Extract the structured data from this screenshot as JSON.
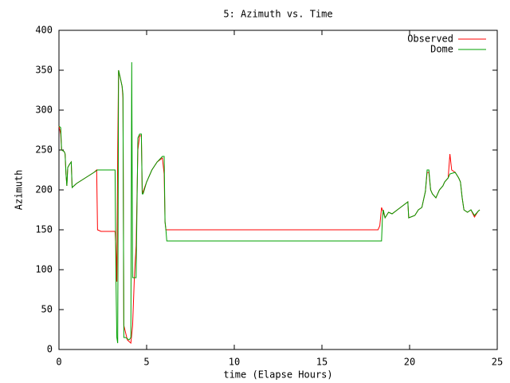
{
  "chart_data": {
    "type": "line",
    "title": "5: Azimuth vs. Time",
    "x_label": "time (Elapse Hours)",
    "y_label": "Azimuth",
    "xlim": [
      0,
      25
    ],
    "xticks": [
      0,
      5,
      10,
      15,
      20,
      25
    ],
    "ylim": [
      0,
      400
    ],
    "yticks": [
      0,
      50,
      100,
      150,
      200,
      250,
      300,
      350,
      400
    ],
    "grid": false,
    "legend": "top-right",
    "series": [
      {
        "name": "Observed",
        "color": "#ff0000",
        "x": [
          0,
          0.1,
          0.15,
          0.3,
          0.35,
          0.4,
          0.45,
          0.5,
          0.6,
          0.7,
          0.75,
          1.0,
          1.5,
          2.0,
          2.15,
          2.2,
          2.4,
          3.2,
          3.25,
          3.3,
          3.35,
          3.4,
          3.5,
          3.6,
          3.65,
          3.7,
          3.9,
          4.0,
          4.1,
          4.2,
          4.3,
          4.4,
          4.5,
          4.6,
          4.7,
          4.75,
          5.0,
          5.3,
          5.6,
          5.9,
          6.0,
          6.05,
          6.1,
          18.2,
          18.3,
          18.4,
          18.5,
          18.6,
          18.8,
          19.0,
          19.3,
          19.6,
          19.9,
          19.95,
          20.3,
          20.5,
          20.7,
          20.9,
          21.0,
          21.1,
          21.2,
          21.3,
          21.5,
          21.7,
          21.9,
          22.0,
          22.2,
          22.3,
          22.4,
          22.6,
          22.8,
          22.9,
          23.0,
          23.1,
          23.3,
          23.5,
          23.7,
          23.9,
          24.0
        ],
        "values": [
          280,
          270,
          250,
          248,
          245,
          220,
          205,
          228,
          232,
          235,
          203,
          208,
          215,
          222,
          225,
          150,
          148,
          148,
          125,
          85,
          250,
          350,
          340,
          330,
          315,
          30,
          12,
          10,
          8,
          30,
          90,
          130,
          250,
          268,
          268,
          195,
          210,
          225,
          235,
          240,
          220,
          160,
          150,
          150,
          155,
          178,
          172,
          165,
          172,
          170,
          175,
          180,
          185,
          165,
          168,
          175,
          178,
          198,
          222,
          222,
          200,
          195,
          190,
          200,
          205,
          210,
          215,
          245,
          225,
          222,
          215,
          210,
          190,
          175,
          172,
          175,
          166,
          173,
          175
        ]
      },
      {
        "name": "Dome",
        "color": "#00a000",
        "x": [
          0,
          0.1,
          0.15,
          0.3,
          0.35,
          0.4,
          0.45,
          0.5,
          0.6,
          0.7,
          0.75,
          1.0,
          1.5,
          2.0,
          2.2,
          3.2,
          3.25,
          3.3,
          3.35,
          3.4,
          3.5,
          3.6,
          3.65,
          3.7,
          3.8,
          4.0,
          4.1,
          4.15,
          4.2,
          4.4,
          4.5,
          4.6,
          4.7,
          4.75,
          4.8,
          5.0,
          5.3,
          5.6,
          5.9,
          6.0,
          6.05,
          6.1,
          6.15,
          18.4,
          18.45,
          18.5,
          18.6,
          18.8,
          19.0,
          19.3,
          19.6,
          19.9,
          19.95,
          20.3,
          20.5,
          20.7,
          20.9,
          21.0,
          21.1,
          21.2,
          21.3,
          21.5,
          21.7,
          21.9,
          22.0,
          22.2,
          22.3,
          22.6,
          22.8,
          22.9,
          23.0,
          23.1,
          23.3,
          23.5,
          23.7,
          23.9,
          24.0
        ],
        "values": [
          280,
          278,
          250,
          248,
          245,
          220,
          205,
          228,
          232,
          235,
          203,
          208,
          215,
          222,
          225,
          225,
          90,
          15,
          8,
          350,
          340,
          330,
          320,
          15,
          15,
          12,
          15,
          360,
          90,
          90,
          265,
          270,
          270,
          195,
          195,
          210,
          225,
          235,
          242,
          242,
          160,
          150,
          136,
          136,
          165,
          175,
          165,
          172,
          170,
          175,
          180,
          185,
          165,
          168,
          175,
          178,
          198,
          225,
          225,
          200,
          195,
          190,
          200,
          205,
          210,
          215,
          220,
          222,
          215,
          210,
          190,
          175,
          172,
          175,
          168,
          173,
          175
        ]
      }
    ]
  }
}
